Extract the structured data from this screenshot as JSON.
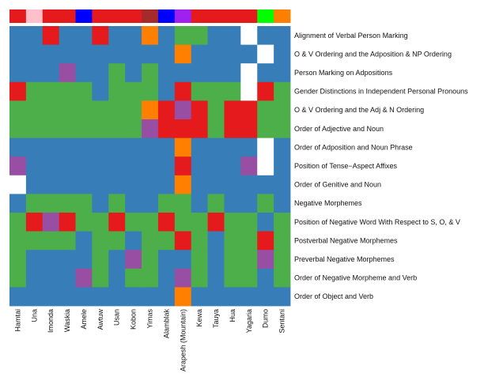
{
  "chart_data": {
    "type": "heatmap",
    "title": "",
    "xlabel": "",
    "ylabel": "",
    "languages": [
      "Hamtai",
      "Una",
      "Imonda",
      "Waskia",
      "Amele",
      "Awtuw",
      "Usan",
      "Kobon",
      "Yimas",
      "Alamblak",
      "Arapesh (Mountain)",
      "Kewa",
      "Tauya",
      "Hua",
      "Yagaria",
      "Dumo",
      "Sentani"
    ],
    "features": [
      "Alignment of Verbal Person Marking",
      "O & V Ordering and the Adposition & NP Ordering",
      "Person Marking on Adpositions",
      "Gender Distinctions in Independent Personal Pronouns",
      "O & V Ordering and the Adj & N Ordering",
      "Order of Adjective and Noun",
      "Order of Adposition and Noun Phrase",
      "Position of Tense−Aspect Affixes",
      "Order of Genitive and Noun",
      "Negative Morphemes",
      "Position of Negative Word With Respect to S, O, & V",
      "Postverbal Negative Morphemes",
      "Preverbal Negative Morphemes",
      "Order of Negative Morpheme and Verb",
      "Order of Object and Verb"
    ],
    "family_bar": [
      "R",
      "K",
      "R",
      "R",
      "N",
      "R",
      "R",
      "R",
      "M",
      "N",
      "V",
      "R",
      "R",
      "R",
      "R",
      "L",
      "O"
    ],
    "cells": [
      "BBRBBRBBOBGGBBWBB",
      "BBBBBBBBBBOBBBBWB",
      "BBBPBBGBGBBBBBWBB",
      "RGGGGBGGGBRGGGWRG",
      "GGGGGGGGORPRGRRGG",
      "GGGGGGGGPRRRGRRGG",
      "BBBBBBBBBBOBBBBWB",
      "PBBBBBBBBBRBBBPWB",
      "WBBBBBBBBBOBBBBBB",
      "BGGGGBGBBGGBGBBGB",
      "GRPRGGRGGRGGRGGBG",
      "GGGGBGGBGGRGBGGRG",
      "GBBBBGBPGBBGBGGPG",
      "GBBBPGBGGBPGBGGBG",
      "BBBBBBBBBBOBBBBBB"
    ],
    "colors": {
      "B": "#377eb8",
      "G": "#4daf4a",
      "R": "#e41a1c",
      "P": "#984ea3",
      "O": "#ff7f00",
      "W": "#ffffff",
      "K": "#ffc0cb",
      "N": "#0000ff",
      "M": "#a52a2a",
      "V": "#a020f0",
      "L": "#00ff00"
    },
    "legend": "none",
    "grid": false
  }
}
